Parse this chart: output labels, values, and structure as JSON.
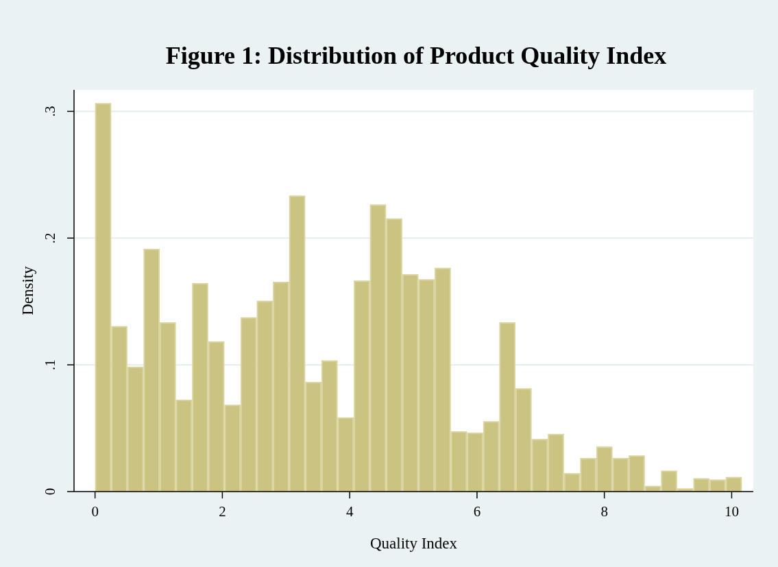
{
  "chart_data": {
    "type": "histogram",
    "title": "Figure 1: Distribution of Product Quality Index",
    "xlabel": "Quality Index",
    "ylabel": "Density",
    "bins": [
      0,
      0.254,
      0.508,
      0.762,
      1.016,
      1.27,
      1.524,
      1.778,
      2.032,
      2.286,
      2.54,
      2.794,
      3.048,
      3.302,
      3.556,
      3.81,
      4.064,
      4.318,
      4.572,
      4.826,
      5.08,
      5.334,
      5.588,
      5.842,
      6.096,
      6.35,
      6.604,
      6.858,
      7.112,
      7.366,
      7.62,
      7.874,
      8.128,
      8.382,
      8.636,
      8.89,
      9.144,
      9.398,
      9.652,
      9.906,
      10.16
    ],
    "values": [
      0.306,
      0.13,
      0.098,
      0.191,
      0.133,
      0.072,
      0.164,
      0.118,
      0.068,
      0.137,
      0.15,
      0.165,
      0.233,
      0.086,
      0.103,
      0.058,
      0.166,
      0.226,
      0.215,
      0.171,
      0.167,
      0.176,
      0.047,
      0.046,
      0.055,
      0.133,
      0.081,
      0.041,
      0.045,
      0.014,
      0.026,
      0.035,
      0.026,
      0.028,
      0.004,
      0.016,
      0.002,
      0.01,
      0.009,
      0.011
    ],
    "color": "#cbc381",
    "xlim": [
      -0.33,
      10.34
    ],
    "xticks": [
      0,
      2,
      4,
      6,
      8,
      10
    ],
    "ylim": [
      0,
      0.317
    ],
    "yticks": [
      0,
      {
        "value": 0.1,
        "label": ".1"
      },
      {
        "value": 0.2,
        "label": ".2"
      },
      {
        "value": 0.3,
        "label": ".3"
      }
    ],
    "grid": "y"
  }
}
